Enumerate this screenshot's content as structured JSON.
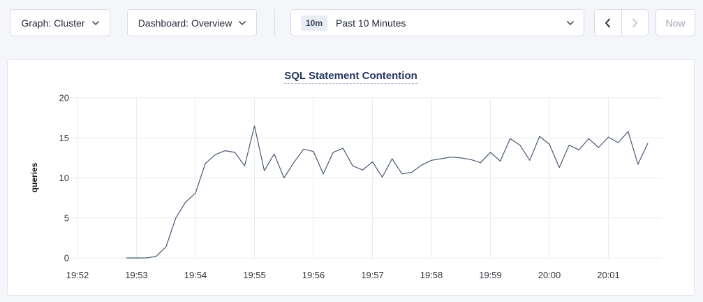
{
  "toolbar": {
    "graph_dropdown": {
      "label": "Graph: Cluster",
      "icon": "chevron-down"
    },
    "dashboard_dropdown": {
      "label": "Dashboard: Overview",
      "icon": "chevron-down"
    },
    "time_range": {
      "badge": "10m",
      "label": "Past 10 Minutes",
      "icon": "chevron-down"
    },
    "prev_button": {
      "icon": "chevron-left",
      "enabled": true
    },
    "next_button": {
      "icon": "chevron-right",
      "enabled": false
    },
    "now_button": {
      "label": "Now",
      "enabled": false
    }
  },
  "colors": {
    "page_bg": "#f4f6fa",
    "panel_bg": "#ffffff",
    "button_border": "#d5dbe5",
    "panel_border": "#e2e7ee",
    "text_dark": "#242c3f",
    "text_disabled": "#9aa5b5",
    "badge_bg": "#e8edf3",
    "title_navy": "#25345e",
    "gridline": "#ebebed",
    "tick_text": "#33373d",
    "ylabel_text": "#16181d",
    "line": "#475872"
  },
  "chart_data": {
    "type": "line",
    "title": "SQL Statement Contention",
    "xlabel": "",
    "ylabel": "queries",
    "ylim": [
      0,
      20
    ],
    "yticks": [
      0,
      5,
      10,
      15,
      20
    ],
    "xticks": [
      "19:52",
      "19:53",
      "19:54",
      "19:55",
      "19:56",
      "19:57",
      "19:58",
      "19:59",
      "20:00",
      "20:01"
    ],
    "xlim": [
      "19:52:00",
      "20:01:54"
    ],
    "grid": true,
    "legend": "none",
    "series": [
      {
        "name": "queries",
        "color": "#475872",
        "points": [
          [
            "19:52:50",
            0
          ],
          [
            "19:53:00",
            0
          ],
          [
            "19:53:10",
            0
          ],
          [
            "19:53:20",
            0.2
          ],
          [
            "19:53:30",
            1.4
          ],
          [
            "19:53:40",
            5
          ],
          [
            "19:53:50",
            7
          ],
          [
            "19:54:00",
            8.1
          ],
          [
            "19:54:10",
            11.8
          ],
          [
            "19:54:20",
            12.9
          ],
          [
            "19:54:30",
            13.4
          ],
          [
            "19:54:40",
            13.2
          ],
          [
            "19:54:50",
            11.5
          ],
          [
            "19:55:00",
            16.5
          ],
          [
            "19:55:10",
            10.9
          ],
          [
            "19:55:20",
            13
          ],
          [
            "19:55:30",
            10
          ],
          [
            "19:55:40",
            11.9
          ],
          [
            "19:55:50",
            13.6
          ],
          [
            "19:56:00",
            13.3
          ],
          [
            "19:56:10",
            10.5
          ],
          [
            "19:56:20",
            13.2
          ],
          [
            "19:56:30",
            13.7
          ],
          [
            "19:56:40",
            11.5
          ],
          [
            "19:56:50",
            11
          ],
          [
            "19:57:00",
            12
          ],
          [
            "19:57:10",
            10.1
          ],
          [
            "19:57:20",
            12.4
          ],
          [
            "19:57:30",
            10.5
          ],
          [
            "19:57:40",
            10.7
          ],
          [
            "19:57:50",
            11.6
          ],
          [
            "19:58:00",
            12.2
          ],
          [
            "19:58:10",
            12.4
          ],
          [
            "19:58:20",
            12.6
          ],
          [
            "19:58:30",
            12.5
          ],
          [
            "19:58:40",
            12.3
          ],
          [
            "19:58:50",
            11.9
          ],
          [
            "19:59:00",
            13.2
          ],
          [
            "19:59:10",
            12.1
          ],
          [
            "19:59:20",
            14.9
          ],
          [
            "19:59:30",
            14.1
          ],
          [
            "19:59:40",
            12.2
          ],
          [
            "19:59:50",
            15.2
          ],
          [
            "20:00:00",
            14.2
          ],
          [
            "20:00:10",
            11.3
          ],
          [
            "20:00:20",
            14.1
          ],
          [
            "20:00:30",
            13.5
          ],
          [
            "20:00:40",
            14.9
          ],
          [
            "20:00:50",
            13.8
          ],
          [
            "20:01:00",
            15.1
          ],
          [
            "20:01:10",
            14.4
          ],
          [
            "20:01:20",
            15.8
          ],
          [
            "20:01:30",
            11.7
          ],
          [
            "20:01:40",
            14.3
          ]
        ]
      }
    ]
  }
}
